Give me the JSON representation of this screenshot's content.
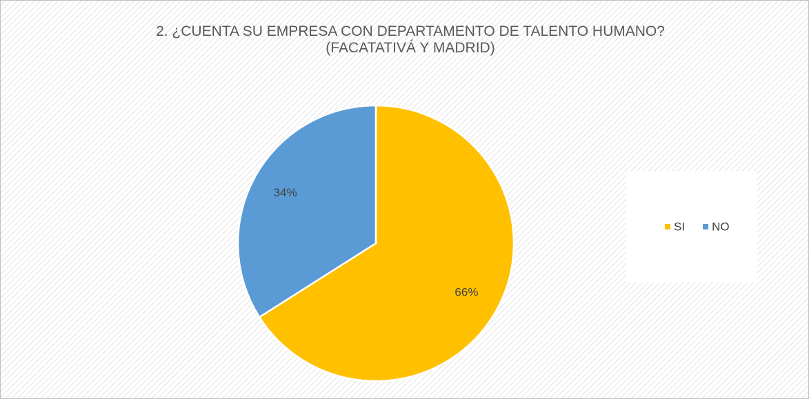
{
  "chart_data": {
    "type": "pie",
    "title": "2. ¿CUENTA SU EMPRESA CON DEPARTAMENTO DE TALENTO HUMANO?",
    "subtitle": "(FACATATIVÁ Y MADRID)",
    "categories": [
      "SI",
      "NO"
    ],
    "values": [
      66,
      34
    ],
    "value_labels": [
      "66%",
      "34%"
    ],
    "colors": [
      "#FFC000",
      "#5B9BD5"
    ],
    "legend": "right"
  }
}
